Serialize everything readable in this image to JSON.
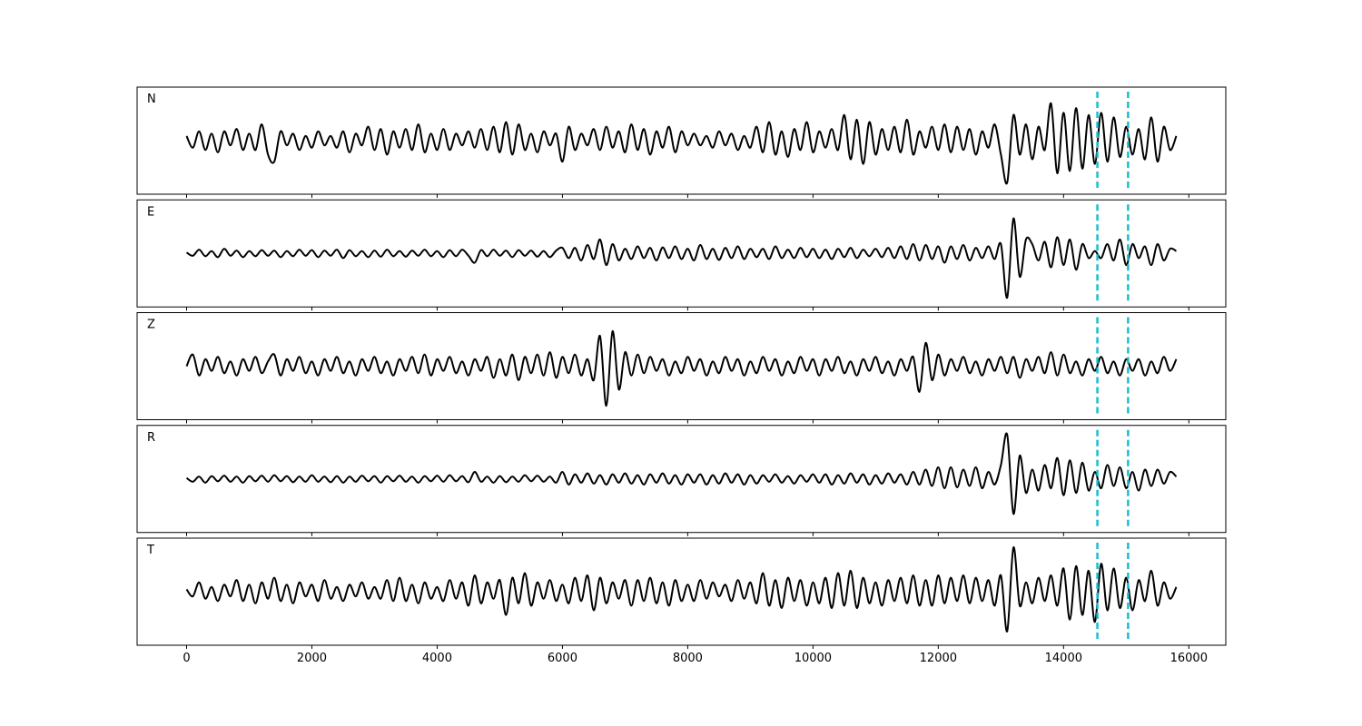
{
  "chart_data": {
    "type": "line",
    "x": [
      0,
      100,
      200,
      300,
      400,
      500,
      600,
      700,
      800,
      900,
      1000,
      1100,
      1200,
      1300,
      1400,
      1500,
      1600,
      1700,
      1800,
      1900,
      2000,
      2100,
      2200,
      2300,
      2400,
      2500,
      2600,
      2700,
      2800,
      2900,
      3000,
      3100,
      3200,
      3300,
      3400,
      3500,
      3600,
      3700,
      3800,
      3900,
      4000,
      4100,
      4200,
      4300,
      4400,
      4500,
      4600,
      4700,
      4800,
      4900,
      5000,
      5100,
      5200,
      5300,
      5400,
      5500,
      5600,
      5700,
      5800,
      5900,
      6000,
      6100,
      6200,
      6300,
      6400,
      6500,
      6600,
      6700,
      6800,
      6900,
      7000,
      7100,
      7200,
      7300,
      7400,
      7500,
      7600,
      7700,
      7800,
      7900,
      8000,
      8100,
      8200,
      8300,
      8400,
      8500,
      8600,
      8700,
      8800,
      8900,
      9000,
      9100,
      9200,
      9300,
      9400,
      9500,
      9600,
      9700,
      9800,
      9900,
      10000,
      10100,
      10200,
      10300,
      10400,
      10500,
      10600,
      10700,
      10800,
      10900,
      11000,
      11100,
      11200,
      11300,
      11400,
      11500,
      11600,
      11700,
      11800,
      11900,
      12000,
      12100,
      12200,
      12300,
      12400,
      12500,
      12600,
      12700,
      12800,
      12900,
      13000,
      13100,
      13200,
      13300,
      13400,
      13500,
      13600,
      13700,
      13800,
      13900,
      14000,
      14100,
      14200,
      14300,
      14400,
      14500,
      14600,
      14700,
      14800,
      14900,
      15000,
      15100,
      15200,
      15300,
      15400,
      15500,
      15600,
      15700,
      15800
    ],
    "series": [
      {
        "name": "N",
        "color": "#000000",
        "values": [
          0.1,
          -0.15,
          0.2,
          -0.2,
          0.15,
          -0.25,
          0.2,
          -0.1,
          0.25,
          -0.2,
          0.15,
          -0.2,
          0.35,
          -0.3,
          -0.45,
          0.2,
          -0.1,
          0.15,
          -0.2,
          0.1,
          -0.15,
          0.2,
          -0.1,
          0.1,
          -0.15,
          0.2,
          -0.25,
          0.15,
          -0.1,
          0.3,
          -0.2,
          0.25,
          -0.3,
          0.2,
          -0.15,
          0.25,
          -0.2,
          0.35,
          -0.25,
          0.15,
          -0.2,
          0.25,
          -0.2,
          0.15,
          -0.1,
          0.2,
          -0.15,
          0.25,
          -0.2,
          0.3,
          -0.25,
          0.4,
          -0.3,
          0.35,
          -0.2,
          0.15,
          -0.25,
          0.2,
          -0.1,
          0.15,
          -0.45,
          0.3,
          -0.2,
          0.15,
          -0.1,
          0.25,
          -0.2,
          0.3,
          -0.15,
          0.2,
          -0.25,
          0.35,
          -0.2,
          0.25,
          -0.3,
          0.2,
          -0.15,
          0.3,
          -0.25,
          0.2,
          -0.1,
          0.15,
          -0.1,
          0.1,
          -0.15,
          0.2,
          -0.1,
          0.15,
          -0.2,
          0.1,
          -0.15,
          0.3,
          -0.25,
          0.4,
          -0.3,
          0.2,
          -0.35,
          0.25,
          -0.2,
          0.4,
          -0.25,
          0.2,
          -0.15,
          0.25,
          -0.2,
          0.55,
          -0.4,
          0.45,
          -0.5,
          0.4,
          -0.3,
          0.25,
          -0.2,
          0.3,
          -0.25,
          0.45,
          -0.3,
          0.2,
          -0.15,
          0.3,
          -0.2,
          0.35,
          -0.25,
          0.3,
          -0.2,
          0.25,
          -0.3,
          0.2,
          -0.15,
          0.35,
          -0.3,
          -0.9,
          0.55,
          -0.3,
          0.35,
          -0.4,
          0.3,
          -0.2,
          0.8,
          -0.7,
          0.6,
          -0.65,
          0.7,
          -0.6,
          0.55,
          -0.5,
          0.6,
          -0.45,
          0.5,
          -0.35,
          0.3,
          -0.3,
          0.25,
          -0.4,
          0.5,
          -0.45,
          0.3,
          -0.2,
          0.1
        ]
      },
      {
        "name": "E",
        "color": "#000000",
        "values": [
          0.02,
          -0.05,
          0.08,
          -0.06,
          0.05,
          -0.08,
          0.1,
          -0.05,
          0.06,
          -0.08,
          0.05,
          -0.06,
          0.07,
          -0.05,
          0.06,
          -0.08,
          0.05,
          -0.06,
          0.08,
          -0.05,
          0.07,
          -0.08,
          0.06,
          -0.05,
          0.08,
          -0.1,
          0.07,
          -0.06,
          0.05,
          -0.08,
          0.06,
          -0.07,
          0.08,
          -0.06,
          0.05,
          -0.07,
          0.06,
          -0.05,
          0.08,
          -0.06,
          0.05,
          -0.08,
          0.07,
          -0.06,
          0.08,
          -0.05,
          -0.2,
          0.07,
          -0.06,
          0.08,
          -0.05,
          0.06,
          -0.08,
          0.07,
          -0.05,
          0.06,
          -0.07,
          0.05,
          -0.08,
          0.06,
          0.12,
          -0.1,
          0.12,
          -0.15,
          0.18,
          -0.12,
          0.3,
          -0.25,
          0.2,
          -0.15,
          0.1,
          -0.12,
          0.15,
          -0.1,
          0.12,
          -0.15,
          0.13,
          -0.1,
          0.15,
          -0.12,
          0.1,
          -0.15,
          0.18,
          -0.12,
          0.1,
          -0.14,
          0.12,
          -0.1,
          0.15,
          -0.12,
          0.1,
          -0.08,
          0.1,
          -0.12,
          0.15,
          -0.1,
          0.08,
          -0.1,
          0.12,
          -0.08,
          0.1,
          -0.1,
          0.08,
          -0.12,
          0.1,
          -0.08,
          0.12,
          -0.1,
          0.08,
          -0.06,
          0.1,
          -0.08,
          0.12,
          -0.1,
          0.15,
          -0.12,
          0.2,
          -0.15,
          0.18,
          -0.12,
          0.15,
          -0.2,
          0.15,
          -0.12,
          0.18,
          -0.15,
          0.12,
          -0.1,
          0.15,
          -0.12,
          0.2,
          -0.95,
          0.75,
          -0.5,
          0.3,
          0.2,
          -0.15,
          0.25,
          -0.3,
          0.35,
          -0.25,
          0.3,
          -0.35,
          0.2,
          -0.1,
          0.05,
          -0.1,
          0.2,
          -0.15,
          0.3,
          -0.25,
          0.2,
          -0.1,
          0.15,
          -0.25,
          0.2,
          -0.15,
          0.1,
          0.05
        ]
      },
      {
        "name": "Z",
        "color": "#000000",
        "values": [
          0.0,
          0.25,
          -0.2,
          0.15,
          -0.1,
          0.2,
          -0.15,
          0.1,
          -0.2,
          0.15,
          -0.1,
          0.2,
          -0.15,
          0.1,
          0.25,
          -0.2,
          0.15,
          -0.1,
          0.2,
          -0.15,
          0.1,
          -0.2,
          0.15,
          -0.1,
          0.2,
          -0.15,
          0.1,
          -0.2,
          0.15,
          -0.1,
          0.2,
          -0.15,
          0.1,
          -0.2,
          0.15,
          -0.1,
          0.2,
          -0.15,
          0.25,
          -0.2,
          0.15,
          -0.1,
          0.2,
          -0.15,
          0.1,
          -0.2,
          0.15,
          -0.1,
          0.2,
          -0.25,
          0.15,
          -0.2,
          0.25,
          -0.3,
          0.2,
          -0.15,
          0.25,
          -0.2,
          0.3,
          -0.25,
          0.2,
          -0.15,
          0.25,
          -0.2,
          0.15,
          -0.3,
          0.65,
          -0.85,
          0.75,
          -0.5,
          0.3,
          -0.2,
          0.25,
          -0.15,
          0.2,
          -0.1,
          0.15,
          -0.2,
          0.1,
          -0.15,
          0.2,
          -0.1,
          0.15,
          -0.2,
          0.1,
          -0.15,
          0.2,
          -0.1,
          0.15,
          -0.2,
          0.1,
          -0.15,
          0.2,
          -0.1,
          0.15,
          -0.2,
          0.1,
          -0.15,
          0.2,
          -0.1,
          0.15,
          -0.2,
          0.15,
          -0.1,
          0.2,
          -0.15,
          0.1,
          -0.2,
          0.15,
          -0.1,
          0.2,
          -0.15,
          0.1,
          -0.2,
          0.15,
          -0.1,
          0.2,
          -0.55,
          0.5,
          -0.3,
          0.25,
          -0.2,
          0.15,
          -0.1,
          0.2,
          -0.15,
          0.1,
          -0.2,
          0.15,
          -0.1,
          0.2,
          -0.15,
          0.2,
          -0.25,
          0.15,
          -0.1,
          0.2,
          -0.15,
          0.3,
          -0.2,
          0.25,
          -0.15,
          0.1,
          -0.2,
          0.15,
          -0.1,
          0.2,
          -0.15,
          0.1,
          -0.2,
          0.15,
          -0.1,
          0.15,
          -0.2,
          0.1,
          -0.15,
          0.2,
          -0.1,
          0.15
        ]
      },
      {
        "name": "R",
        "color": "#000000",
        "values": [
          0.02,
          -0.06,
          0.05,
          -0.08,
          0.06,
          -0.05,
          0.07,
          -0.06,
          0.05,
          -0.08,
          0.06,
          -0.05,
          0.07,
          -0.06,
          0.08,
          -0.05,
          0.06,
          -0.07,
          0.05,
          -0.06,
          0.08,
          -0.06,
          0.05,
          -0.07,
          0.06,
          -0.08,
          0.05,
          -0.06,
          0.07,
          -0.05,
          0.06,
          -0.08,
          0.06,
          -0.05,
          0.07,
          -0.06,
          0.05,
          -0.08,
          0.06,
          -0.05,
          0.07,
          -0.06,
          0.08,
          -0.05,
          0.06,
          -0.07,
          0.15,
          -0.06,
          0.05,
          -0.08,
          0.06,
          -0.07,
          0.05,
          -0.06,
          0.08,
          -0.05,
          0.07,
          -0.06,
          0.05,
          -0.08,
          0.15,
          -0.12,
          0.1,
          -0.08,
          0.12,
          -0.1,
          0.08,
          -0.12,
          0.1,
          -0.08,
          0.12,
          -0.1,
          0.08,
          -0.12,
          0.1,
          -0.08,
          0.12,
          -0.1,
          0.08,
          -0.12,
          0.1,
          -0.08,
          0.1,
          -0.12,
          0.08,
          -0.1,
          0.12,
          -0.08,
          0.1,
          -0.12,
          0.08,
          -0.1,
          0.08,
          -0.06,
          0.1,
          -0.08,
          0.06,
          -0.1,
          0.08,
          -0.06,
          0.1,
          -0.08,
          0.1,
          -0.12,
          0.08,
          -0.1,
          0.12,
          -0.08,
          0.1,
          -0.12,
          0.08,
          -0.1,
          0.12,
          -0.08,
          0.1,
          -0.12,
          0.15,
          -0.12,
          0.2,
          -0.15,
          0.25,
          -0.2,
          0.25,
          -0.18,
          0.2,
          -0.15,
          0.25,
          -0.2,
          0.15,
          -0.12,
          0.3,
          0.95,
          -0.75,
          0.5,
          -0.3,
          0.2,
          -0.25,
          0.3,
          -0.2,
          0.45,
          -0.35,
          0.4,
          -0.3,
          0.35,
          -0.25,
          0.15,
          -0.2,
          0.3,
          -0.15,
          0.25,
          -0.2,
          0.15,
          -0.25,
          0.2,
          -0.15,
          0.2,
          -0.1,
          0.15,
          0.05
        ]
      },
      {
        "name": "T",
        "color": "#000000",
        "values": [
          0.05,
          -0.1,
          0.2,
          -0.15,
          0.1,
          -0.2,
          0.15,
          -0.1,
          0.25,
          -0.2,
          0.15,
          -0.25,
          0.2,
          -0.15,
          0.3,
          -0.2,
          0.15,
          -0.25,
          0.2,
          -0.1,
          0.15,
          -0.2,
          0.25,
          -0.15,
          0.1,
          -0.2,
          0.15,
          -0.1,
          0.2,
          -0.15,
          0.1,
          -0.15,
          0.25,
          -0.2,
          0.3,
          -0.2,
          0.15,
          -0.25,
          0.2,
          -0.15,
          0.1,
          -0.2,
          0.25,
          -0.15,
          0.2,
          -0.3,
          0.35,
          -0.25,
          0.2,
          -0.15,
          0.25,
          -0.5,
          0.3,
          -0.25,
          0.4,
          -0.3,
          0.2,
          -0.15,
          0.25,
          -0.2,
          0.15,
          -0.25,
          0.3,
          -0.2,
          0.35,
          -0.4,
          0.3,
          -0.25,
          0.2,
          -0.15,
          0.25,
          -0.3,
          0.25,
          -0.2,
          0.3,
          -0.25,
          0.2,
          -0.3,
          0.25,
          -0.2,
          0.15,
          -0.2,
          0.25,
          -0.15,
          0.2,
          -0.1,
          0.15,
          -0.2,
          0.25,
          -0.15,
          0.2,
          -0.25,
          0.4,
          -0.3,
          0.25,
          -0.35,
          0.3,
          -0.2,
          0.25,
          -0.3,
          0.2,
          -0.25,
          0.3,
          -0.35,
          0.4,
          -0.3,
          0.45,
          -0.35,
          0.3,
          -0.25,
          0.2,
          -0.3,
          0.25,
          -0.2,
          0.3,
          -0.25,
          0.35,
          -0.3,
          0.25,
          -0.3,
          0.35,
          -0.25,
          0.3,
          -0.2,
          0.35,
          -0.25,
          0.3,
          -0.2,
          0.25,
          -0.3,
          0.35,
          -0.85,
          0.95,
          -0.3,
          0.2,
          -0.25,
          0.3,
          -0.2,
          0.35,
          -0.3,
          0.5,
          -0.6,
          0.55,
          -0.5,
          0.45,
          -0.65,
          0.6,
          -0.4,
          0.5,
          -0.35,
          0.3,
          -0.4,
          0.25,
          -0.2,
          0.45,
          -0.3,
          0.2,
          -0.15,
          0.1
        ]
      }
    ],
    "vlines": [
      14540,
      15030
    ],
    "vline_color": "#17becf",
    "xlim": [
      -790,
      16590
    ],
    "xticks": [
      0,
      2000,
      4000,
      6000,
      8000,
      10000,
      12000,
      14000,
      16000
    ],
    "ylim": [
      -1.15,
      1.15
    ]
  }
}
